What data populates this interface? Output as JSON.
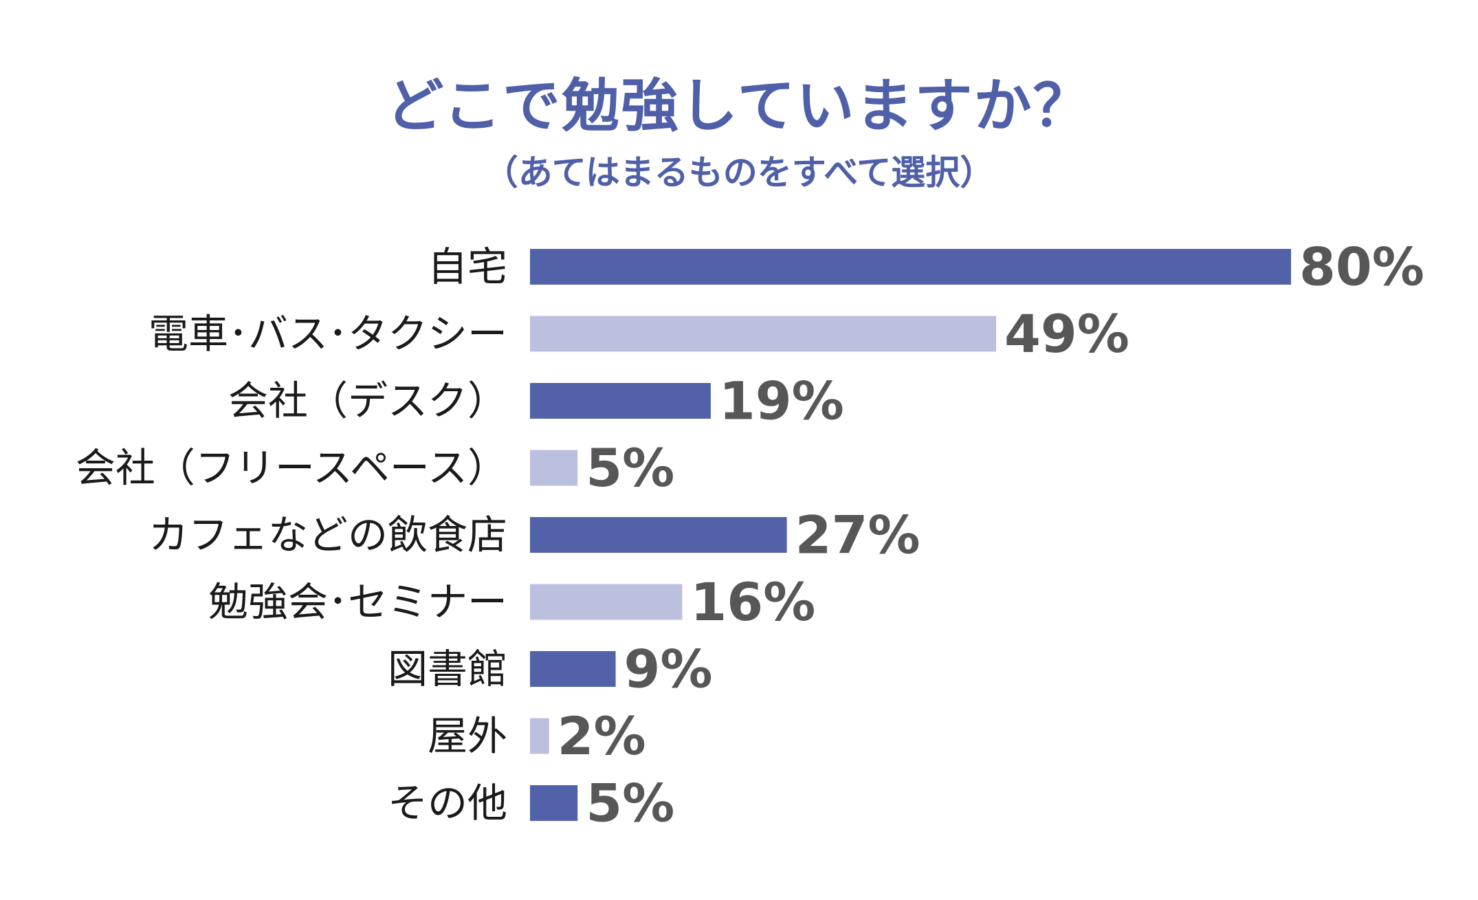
{
  "chart_data": {
    "type": "bar",
    "orientation": "horizontal",
    "title": "どこで勉強していますか？",
    "subtitle": "（あてはまるものをすべて選択）",
    "categories": [
      "自宅",
      "電車･バス･タクシー",
      "会社（デスク）",
      "会社（フリースペース）",
      "カフェなどの飲食店",
      "勉強会･セミナー",
      "図書館",
      "屋外",
      "その他"
    ],
    "values": [
      80,
      49,
      19,
      5,
      27,
      16,
      9,
      2,
      5
    ],
    "value_labels": [
      "80%",
      "49%",
      "19%",
      "5%",
      "27%",
      "16%",
      "9%",
      "2%",
      "5%"
    ],
    "unit": "%",
    "xlim": [
      0,
      80
    ],
    "grid": false,
    "legend": "none"
  },
  "colors": {
    "title": "#4f5fa8",
    "bar_dark": "#5262a9",
    "bar_light": "#bcc0df",
    "category_text": "#1a1a1a",
    "value_text": "#575757"
  }
}
